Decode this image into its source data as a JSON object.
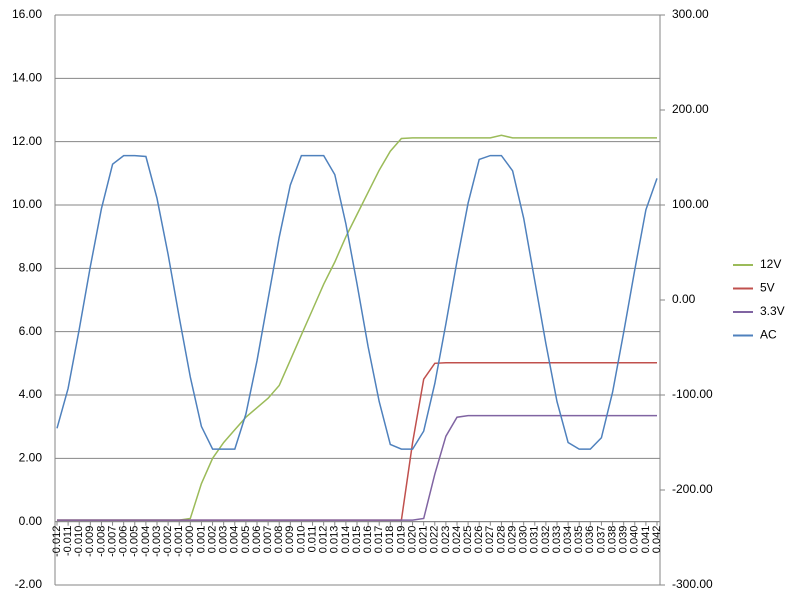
{
  "chart_data": {
    "type": "line",
    "categories": [
      "-0.012",
      "-0.011",
      "-0.010",
      "-0.009",
      "-0.008",
      "-0.007",
      "-0.006",
      "-0.005",
      "-0.004",
      "-0.003",
      "-0.002",
      "-0.001",
      "-0.000",
      "0.001",
      "0.002",
      "0.003",
      "0.004",
      "0.005",
      "0.006",
      "0.007",
      "0.008",
      "0.009",
      "0.010",
      "0.011",
      "0.012",
      "0.013",
      "0.014",
      "0.015",
      "0.016",
      "0.017",
      "0.018",
      "0.019",
      "0.020",
      "0.021",
      "0.022",
      "0.023",
      "0.024",
      "0.025",
      "0.026",
      "0.027",
      "0.028",
      "0.029",
      "0.030",
      "0.031",
      "0.032",
      "0.033",
      "0.034",
      "0.035",
      "0.036",
      "0.037",
      "0.038",
      "0.039",
      "0.040",
      "0.041",
      "0.042"
    ],
    "ylim": [
      -2,
      16
    ],
    "yticks": [
      {
        "value": -2,
        "label": "-2.00"
      },
      {
        "value": 0,
        "label": "0.00"
      },
      {
        "value": 2,
        "label": "2.00"
      },
      {
        "value": 4,
        "label": "4.00"
      },
      {
        "value": 6,
        "label": "6.00"
      },
      {
        "value": 8,
        "label": "8.00"
      },
      {
        "value": 10,
        "label": "10.00"
      },
      {
        "value": 12,
        "label": "12.00"
      },
      {
        "value": 14,
        "label": "14.00"
      },
      {
        "value": 16,
        "label": "16.00"
      }
    ],
    "y2lim": [
      -300,
      300
    ],
    "y2ticks": [
      {
        "value": -300,
        "label": "-300.00"
      },
      {
        "value": -200,
        "label": "-200.00"
      },
      {
        "value": -100,
        "label": "-100.00"
      },
      {
        "value": 0,
        "label": "0.00"
      },
      {
        "value": 100,
        "label": "100.00"
      },
      {
        "value": 200,
        "label": "200.00"
      },
      {
        "value": 300,
        "label": "300.00"
      }
    ],
    "grid": true,
    "legend": "right",
    "series": [
      {
        "name": "12V",
        "color": "#9bbb59",
        "values": [
          0.05,
          0.05,
          0.05,
          0.05,
          0.05,
          0.05,
          0.05,
          0.05,
          0.05,
          0.05,
          0.05,
          0.05,
          0.1,
          1.2,
          2.0,
          2.5,
          2.9,
          3.3,
          3.6,
          3.9,
          4.3,
          5.1,
          5.9,
          6.7,
          7.5,
          8.2,
          9.0,
          9.7,
          10.4,
          11.1,
          11.7,
          12.1,
          12.12,
          12.12,
          12.12,
          12.12,
          12.12,
          12.12,
          12.12,
          12.12,
          12.2,
          12.12,
          12.12,
          12.12,
          12.12,
          12.12,
          12.12,
          12.12,
          12.12,
          12.12,
          12.12,
          12.12,
          12.12,
          12.12,
          12.12
        ]
      },
      {
        "name": "5V",
        "color": "#c0504d",
        "values": [
          0.05,
          0.05,
          0.05,
          0.05,
          0.05,
          0.05,
          0.05,
          0.05,
          0.05,
          0.05,
          0.05,
          0.05,
          0.05,
          0.05,
          0.05,
          0.05,
          0.05,
          0.05,
          0.05,
          0.05,
          0.05,
          0.05,
          0.05,
          0.05,
          0.05,
          0.05,
          0.05,
          0.05,
          0.05,
          0.05,
          0.05,
          0.05,
          2.5,
          4.5,
          5.0,
          5.02,
          5.02,
          5.02,
          5.02,
          5.02,
          5.02,
          5.02,
          5.02,
          5.02,
          5.02,
          5.02,
          5.02,
          5.02,
          5.02,
          5.02,
          5.02,
          5.02,
          5.02,
          5.02,
          5.02
        ]
      },
      {
        "name": "3.3V",
        "color": "#8064a2",
        "values": [
          0.05,
          0.05,
          0.05,
          0.05,
          0.05,
          0.05,
          0.05,
          0.05,
          0.05,
          0.05,
          0.05,
          0.05,
          0.05,
          0.05,
          0.05,
          0.05,
          0.05,
          0.05,
          0.05,
          0.05,
          0.05,
          0.05,
          0.05,
          0.05,
          0.05,
          0.05,
          0.05,
          0.05,
          0.05,
          0.05,
          0.05,
          0.05,
          0.05,
          0.1,
          1.5,
          2.7,
          3.3,
          3.35,
          3.35,
          3.35,
          3.35,
          3.35,
          3.35,
          3.35,
          3.35,
          3.35,
          3.35,
          3.35,
          3.35,
          3.35,
          3.35,
          3.35,
          3.35,
          3.35,
          3.35
        ]
      },
      {
        "name": "AC",
        "color": "#4f81bd",
        "axis": "y2",
        "values": [
          -135,
          -93,
          -31,
          35,
          96,
          143,
          152,
          152,
          151,
          107,
          48,
          -18,
          -81,
          -133,
          -157,
          -157,
          -157,
          -120,
          -64,
          1,
          66,
          121,
          152,
          152,
          152,
          132,
          80,
          17,
          -49,
          -107,
          -152,
          -157,
          -157,
          -138,
          -88,
          -25,
          41,
          102,
          148,
          152,
          152,
          136,
          86,
          20,
          -46,
          -107,
          -150,
          -157,
          -157,
          -145,
          -97,
          -34,
          32,
          95,
          128
        ]
      }
    ]
  }
}
